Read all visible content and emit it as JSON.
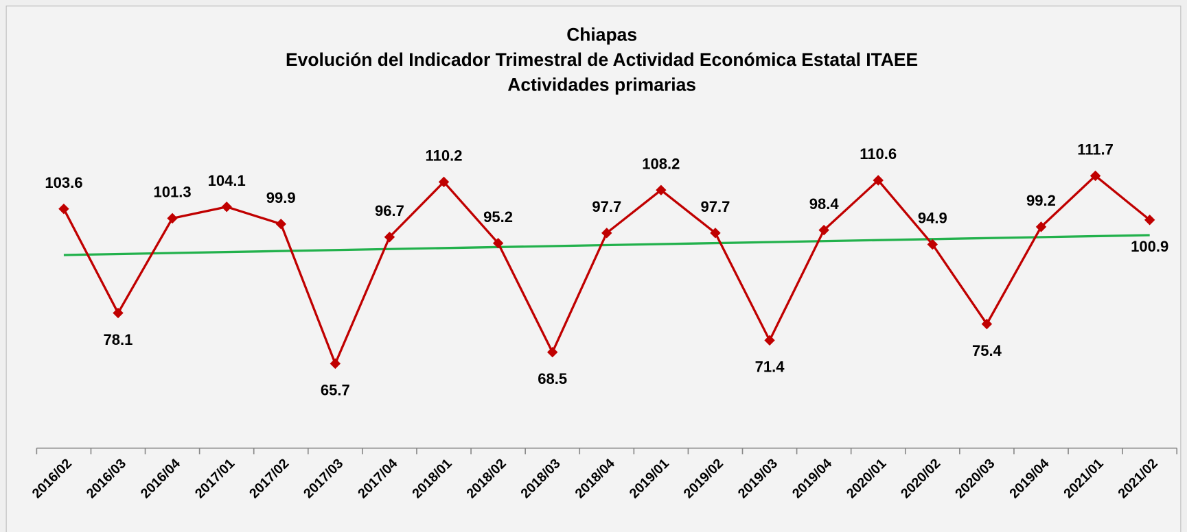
{
  "chart_data": {
    "type": "line",
    "title": "Chiapas",
    "subtitle": [
      "Evolución del Indicador Trimestral de Actividad Económica Estatal ITAEE",
      "Actividades primarias"
    ],
    "categories": [
      "2016/02",
      "2016/03",
      "2016/04",
      "2017/01",
      "2017/02",
      "2017/03",
      "2017/04",
      "2018/01",
      "2018/02",
      "2018/03",
      "2018/04",
      "2019/01",
      "2019/02",
      "2019/03",
      "2019/04",
      "2020/01",
      "2020/02",
      "2020/03",
      "2019/04",
      "2021/01",
      "2021/02"
    ],
    "series": [
      {
        "color": "#c00000",
        "values": [
          103.6,
          78.1,
          101.3,
          104.1,
          99.9,
          65.7,
          96.7,
          110.2,
          95.2,
          68.5,
          97.7,
          108.2,
          97.7,
          71.4,
          98.4,
          110.6,
          94.9,
          75.4,
          99.2,
          111.7,
          100.9
        ]
      }
    ],
    "ylim": [
      45,
      127
    ],
    "trendline": true,
    "trendline_color": "#22b14c"
  }
}
